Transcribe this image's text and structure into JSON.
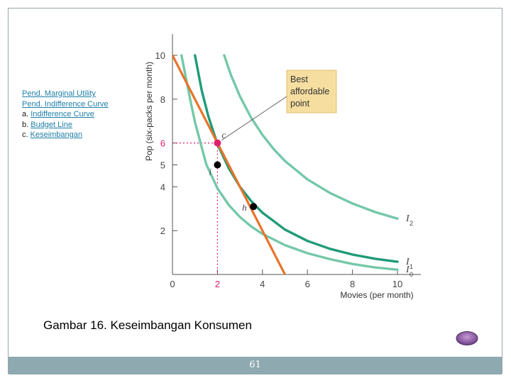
{
  "sidebar": {
    "links": [
      {
        "prefix": "",
        "label": "Pend. Marginal Utility"
      },
      {
        "prefix": "",
        "label": "Pend. Indifference Curve"
      },
      {
        "prefix": "a. ",
        "label": "Indifference Curve"
      },
      {
        "prefix": "b. ",
        "label": "Budget Line"
      },
      {
        "prefix": "c. ",
        "label": "Keseimbangan"
      }
    ]
  },
  "caption": "Gambar 16. Keseimbangan Konsumen",
  "footer": {
    "page_number": "61"
  },
  "colors": {
    "budget_line": "#e8732a",
    "indifference_light": "#74c8a8",
    "indifference_dark": "#1f9b78",
    "point_c": "#e0206e",
    "points": "#000000",
    "callout_fill": "#f6dea0",
    "footer_bar": "#8fa9b1",
    "link": "#1e7fa8"
  },
  "chart_data": {
    "type": "line",
    "xlabel": "Movies (per month)",
    "ylabel": "Pop (six-packs per month)",
    "xlim": [
      0,
      10
    ],
    "ylim": [
      0,
      10
    ],
    "x_ticks": [
      0,
      2,
      4,
      6,
      8,
      10
    ],
    "y_ticks": [
      2,
      4,
      5,
      6,
      8,
      10
    ],
    "highlight_tick": {
      "x": "2",
      "y": "6"
    },
    "annotation": [
      "Best",
      "affordable",
      "point"
    ],
    "series": [
      {
        "name": "I",
        "sub": "0",
        "role": "light",
        "x": [
          0.4,
          0.8,
          1.0,
          1.5,
          2.0,
          2.5,
          3.0,
          3.5,
          4.0,
          5.0,
          6.0,
          7.0,
          8.0,
          9.0,
          10.0
        ],
        "y": [
          10.0,
          7.92,
          6.96,
          5.04,
          3.93,
          3.17,
          2.62,
          2.19,
          1.85,
          1.34,
          0.97,
          0.7,
          0.48,
          0.32,
          0.22
        ]
      },
      {
        "name": "I",
        "sub": "1",
        "role": "dark",
        "x": [
          1.0,
          1.3,
          1.6,
          2.0,
          2.5,
          3.0,
          3.5,
          4.0,
          5.0,
          6.0,
          7.0,
          8.0,
          9.0,
          10.0
        ],
        "y": [
          10.0,
          8.4,
          7.2,
          5.95,
          4.85,
          4.0,
          3.35,
          2.82,
          2.05,
          1.53,
          1.17,
          0.91,
          0.72,
          0.58
        ]
      },
      {
        "name": "I",
        "sub": "2",
        "role": "light",
        "x": [
          2.3,
          2.6,
          3.0,
          3.5,
          4.0,
          4.5,
          5.0,
          6.0,
          7.0,
          8.0,
          9.0,
          10.0
        ],
        "y": [
          10.0,
          9.1,
          8.13,
          7.15,
          6.37,
          5.72,
          5.18,
          4.34,
          3.72,
          3.24,
          2.85,
          2.55
        ]
      },
      {
        "name": "",
        "role": "budget",
        "x": [
          0,
          5
        ],
        "y": [
          10,
          0
        ]
      }
    ],
    "points": [
      {
        "label": "c",
        "x": 2.0,
        "y": 6.0,
        "role": "best"
      },
      {
        "label": "i",
        "x": 2.0,
        "y": 5.0,
        "role": "normal"
      },
      {
        "label": "h",
        "x": 3.6,
        "y": 3.1,
        "role": "normal"
      }
    ]
  }
}
